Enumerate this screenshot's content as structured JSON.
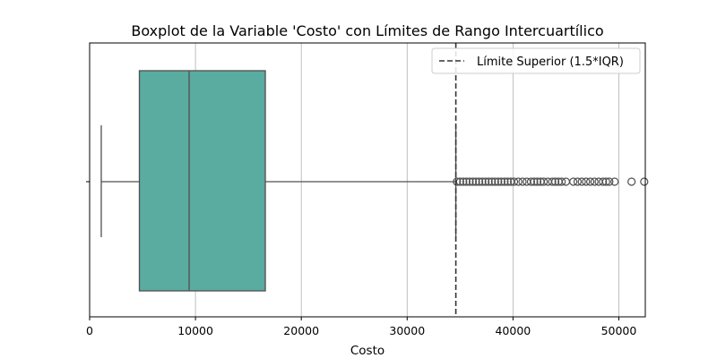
{
  "chart_data": {
    "type": "boxplot",
    "title": "Boxplot de la Variable 'Costo' con Límites de Rango Intercuartílico",
    "xlabel": "Costo",
    "ylabel": "",
    "xlim": [
      0,
      52500
    ],
    "xticks": [
      0,
      10000,
      20000,
      30000,
      40000,
      50000
    ],
    "grid": "x",
    "legend_position": "top-right",
    "box_color": "#5aaba0",
    "line_color": "#505050",
    "box": {
      "whisker_low": 1100,
      "q1": 4700,
      "median": 9400,
      "q3": 16600,
      "whisker_high": 34600
    },
    "outliers": [
      34700,
      35000,
      35300,
      35600,
      35900,
      36200,
      36500,
      36800,
      37100,
      37400,
      37700,
      38000,
      38300,
      38600,
      38900,
      39200,
      39500,
      39800,
      40100,
      40500,
      40900,
      41300,
      41700,
      42000,
      42300,
      42600,
      42900,
      43300,
      43700,
      44000,
      44300,
      44600,
      45000,
      45700,
      46100,
      46500,
      46900,
      47300,
      47700,
      48100,
      48500,
      48800,
      49100,
      49600,
      51200,
      52400
    ],
    "reference_line": {
      "value": 34600,
      "label": "Límite Superior (1.5*IQR)",
      "style": "dashed",
      "color": "#333333"
    }
  }
}
